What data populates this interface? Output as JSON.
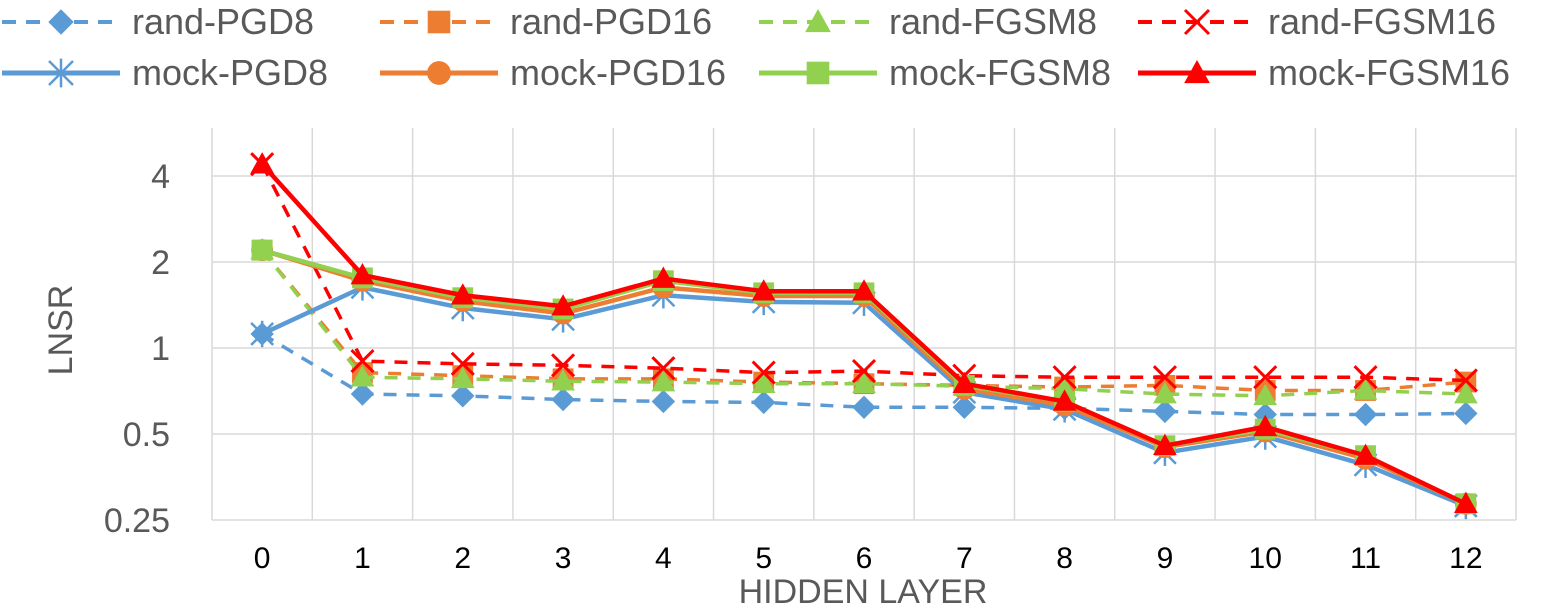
{
  "chart_data": {
    "type": "line",
    "title": "",
    "xlabel": "HIDDEN LAYER",
    "ylabel": "LNSR",
    "y_scale": "log2",
    "ylim": [
      0.25,
      4.8
    ],
    "grid": "vertical and horizontal gridlines at y ticks",
    "legend_position": "top",
    "categories": [
      "0",
      "1",
      "2",
      "3",
      "4",
      "5",
      "6",
      "7",
      "8",
      "9",
      "10",
      "11",
      "12"
    ],
    "y_ticks": [
      {
        "value": 0.25,
        "label": "0.25"
      },
      {
        "value": 0.5,
        "label": "0.5"
      },
      {
        "value": 1,
        "label": "1"
      },
      {
        "value": 2,
        "label": "2"
      },
      {
        "value": 4,
        "label": "4"
      }
    ],
    "series": [
      {
        "name": "rand-PGD8",
        "color": "#5B9BD5",
        "dash": true,
        "marker": "diamond",
        "values": [
          1.12,
          0.69,
          0.68,
          0.66,
          0.65,
          0.645,
          0.62,
          0.62,
          0.615,
          0.6,
          0.585,
          0.585,
          0.59
        ]
      },
      {
        "name": "rand-PGD16",
        "color": "#ED7D31",
        "dash": true,
        "marker": "square",
        "values": [
          2.2,
          0.82,
          0.8,
          0.78,
          0.78,
          0.76,
          0.75,
          0.74,
          0.73,
          0.74,
          0.71,
          0.71,
          0.76
        ]
      },
      {
        "name": "rand-FGSM8",
        "color": "#92D050",
        "dash": true,
        "marker": "triangle",
        "values": [
          2.2,
          0.79,
          0.78,
          0.765,
          0.76,
          0.75,
          0.75,
          0.735,
          0.72,
          0.69,
          0.68,
          0.71,
          0.69
        ]
      },
      {
        "name": "rand-FGSM16",
        "color": "#FF0000",
        "dash": true,
        "marker": "x",
        "values": [
          4.4,
          0.9,
          0.88,
          0.87,
          0.85,
          0.82,
          0.83,
          0.8,
          0.79,
          0.79,
          0.79,
          0.79,
          0.77
        ]
      },
      {
        "name": "mock-PGD8",
        "color": "#5B9BD5",
        "dash": false,
        "marker": "asterisk",
        "values": [
          1.12,
          1.63,
          1.38,
          1.26,
          1.53,
          1.45,
          1.44,
          0.7,
          0.61,
          0.43,
          0.49,
          0.39,
          0.28
        ]
      },
      {
        "name": "mock-PGD16",
        "color": "#ED7D31",
        "dash": false,
        "marker": "circle",
        "values": [
          2.2,
          1.72,
          1.46,
          1.32,
          1.63,
          1.52,
          1.52,
          0.72,
          0.63,
          0.45,
          0.51,
          0.41,
          0.285
        ]
      },
      {
        "name": "mock-FGSM8",
        "color": "#92D050",
        "dash": false,
        "marker": "square",
        "values": [
          2.2,
          1.76,
          1.5,
          1.37,
          1.72,
          1.56,
          1.56,
          0.74,
          0.65,
          0.455,
          0.52,
          0.42,
          0.285
        ]
      },
      {
        "name": "mock-FGSM16",
        "color": "#FF0000",
        "dash": false,
        "marker": "triangle",
        "values": [
          4.4,
          1.8,
          1.53,
          1.4,
          1.75,
          1.58,
          1.58,
          0.75,
          0.65,
          0.455,
          0.53,
          0.42,
          0.285
        ]
      }
    ]
  }
}
